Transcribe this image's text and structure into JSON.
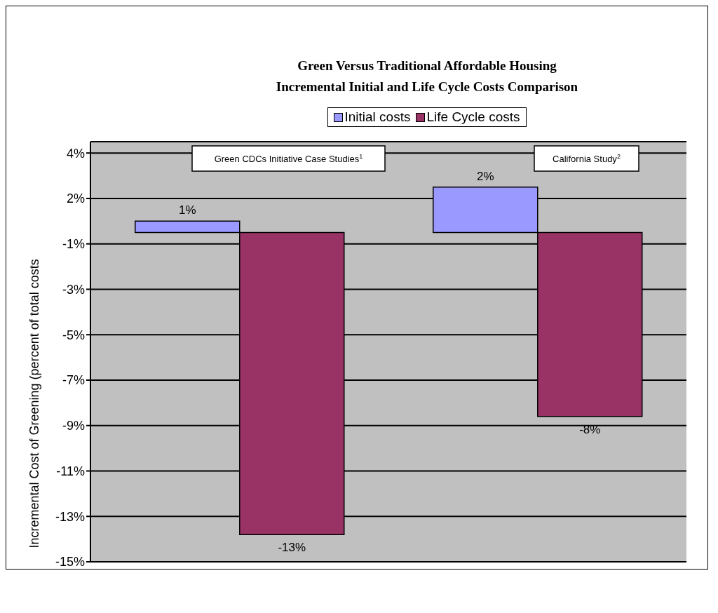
{
  "chart_data": {
    "type": "bar",
    "title": "Green Versus Traditional Affordable Housing\nIncremental Initial and Life Cycle Costs Comparison",
    "ylabel": "Incremental Cost of Greening (percent of total costs",
    "categories": [
      "Green CDCs Initiative Case Studies$^{1}$",
      "California Study$^{2}$"
    ],
    "series": [
      {
        "name": "Initial costs",
        "color": "#9999ff",
        "values": [
          0.5,
          2.0
        ],
        "value_labels": [
          "1%",
          "2%"
        ]
      },
      {
        "name": "Life Cycle costs",
        "color": "#993366",
        "values": [
          -13.3,
          -8.1
        ],
        "value_labels": [
          "-13%",
          "-8%"
        ]
      }
    ],
    "ylim": [
      -14.5,
      4.0
    ],
    "yticks": [
      {
        "value": 3.5,
        "label": "4%"
      },
      {
        "value": 1.5,
        "label": "2%"
      },
      {
        "value": -0.5,
        "label": "-1%"
      },
      {
        "value": -2.5,
        "label": "-3%"
      },
      {
        "value": -4.5,
        "label": "-5%"
      },
      {
        "value": -6.5,
        "label": "-7%"
      },
      {
        "value": -8.5,
        "label": "-9%"
      },
      {
        "value": -10.5,
        "label": "-11%"
      },
      {
        "value": -12.5,
        "label": "-13%"
      },
      {
        "value": -14.5,
        "label": "-15%"
      }
    ],
    "grid": "y",
    "legend": "top"
  }
}
